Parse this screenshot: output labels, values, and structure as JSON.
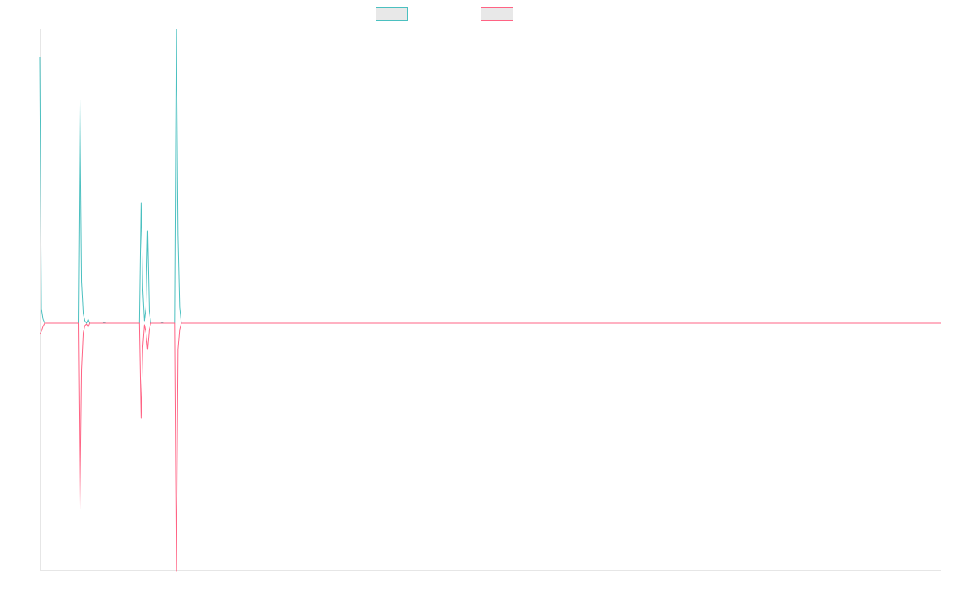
{
  "chart_data": {
    "type": "line",
    "title": "",
    "xlabel": "",
    "ylabel": "",
    "grid": false,
    "legend_position": "top-center",
    "x": [
      0,
      1,
      2,
      3,
      4,
      5,
      6,
      7,
      8,
      9,
      10,
      11,
      12,
      13,
      14,
      15,
      16,
      17,
      18,
      19,
      20,
      21,
      22,
      23,
      24,
      25,
      26,
      27,
      28,
      29,
      30,
      31,
      32,
      33,
      34,
      35,
      36,
      37,
      38,
      39,
      40,
      41,
      42,
      43,
      44,
      45,
      46,
      47,
      48,
      49,
      50,
      51,
      52,
      53,
      54,
      55,
      56,
      57,
      58,
      59,
      60,
      61,
      62,
      63,
      64,
      65,
      66,
      67,
      68,
      69,
      70,
      71,
      72,
      73,
      74,
      75,
      76,
      77,
      78,
      79,
      80,
      81,
      82,
      83,
      84,
      85,
      86,
      87,
      88,
      89,
      90,
      91,
      92,
      93,
      94,
      95,
      96,
      97,
      98,
      99,
      100,
      101,
      102,
      103,
      104,
      105,
      106,
      107,
      108,
      109,
      110,
      111,
      112,
      113,
      114,
      115,
      116,
      117,
      118,
      119,
      120,
      121,
      122,
      123,
      124,
      125,
      126,
      127,
      128,
      129,
      130,
      131,
      132,
      133,
      134,
      135,
      136,
      137,
      138,
      139,
      140,
      141,
      142,
      143,
      144,
      145,
      146,
      147,
      148,
      149,
      150,
      151,
      152,
      153,
      154,
      155,
      156,
      157,
      158,
      159,
      160,
      161,
      162,
      163,
      164,
      165,
      166,
      167,
      168,
      169,
      170,
      171,
      172,
      173,
      174,
      175,
      176,
      177,
      178,
      179,
      180,
      181,
      182,
      183,
      184,
      185,
      186,
      187,
      188,
      189,
      190,
      191,
      192,
      193,
      194,
      195,
      196,
      197,
      198,
      199,
      200,
      201,
      202,
      203,
      204,
      205,
      206,
      207,
      208,
      209,
      210,
      211,
      212,
      213,
      214,
      215,
      216,
      217,
      218,
      219,
      220,
      221,
      222,
      223,
      224,
      225,
      226,
      227,
      228,
      229,
      230,
      231,
      232,
      233,
      234,
      235,
      236,
      237,
      238,
      239,
      240,
      241,
      242,
      243,
      244,
      245,
      246,
      247,
      248,
      249,
      250,
      251,
      252,
      253,
      254,
      255,
      256,
      257,
      258,
      259,
      260,
      261,
      262,
      263,
      264,
      265,
      266,
      267,
      268,
      269,
      270,
      271,
      272,
      273,
      274,
      275,
      276,
      277,
      278,
      279,
      280,
      281,
      282,
      283,
      284,
      285,
      286,
      287,
      288,
      289,
      290,
      291,
      292,
      293,
      294,
      295,
      296,
      297,
      298,
      299,
      300,
      301,
      302,
      303,
      304,
      305,
      306,
      307,
      308,
      309,
      310,
      311,
      312,
      313,
      314,
      315,
      316,
      317,
      318,
      319,
      320,
      321,
      322,
      323,
      324,
      325,
      326,
      327,
      328,
      329,
      330,
      331,
      332,
      333,
      334,
      335,
      336,
      337,
      338,
      339,
      340,
      341,
      342,
      343,
      344,
      345,
      346,
      347,
      348,
      349,
      350,
      351,
      352,
      353,
      354,
      355,
      356,
      357,
      358,
      359,
      360,
      361,
      362,
      363,
      364,
      365,
      366,
      367,
      368,
      369,
      370,
      371,
      372,
      373,
      374,
      375,
      376,
      377,
      378,
      379,
      380,
      381,
      382,
      383,
      384,
      385,
      386,
      387,
      388,
      389,
      390,
      391,
      392,
      393,
      394,
      395,
      396,
      397,
      398,
      399,
      400,
      401,
      402,
      403,
      404,
      405,
      406,
      407,
      408,
      409,
      410,
      411,
      412,
      413,
      414,
      415,
      416,
      417,
      418,
      419,
      420,
      421,
      422,
      423,
      424,
      425,
      426,
      427,
      428,
      429,
      430,
      431,
      432,
      433,
      434,
      435,
      436,
      437,
      438,
      439,
      440,
      441,
      442,
      443,
      444,
      445,
      446,
      447,
      448,
      449,
      450,
      451,
      452,
      453,
      454,
      455,
      456,
      457,
      458,
      459,
      460,
      461,
      462,
      463,
      464,
      465,
      466,
      467,
      468,
      469,
      470,
      471,
      472,
      473,
      474,
      475,
      476,
      477,
      478,
      479,
      480,
      481,
      482,
      483,
      484,
      485,
      486,
      487,
      488,
      489,
      490,
      491,
      492,
      493,
      494,
      495,
      496,
      497,
      498,
      499,
      500,
      501,
      502,
      503,
      504,
      505,
      506,
      507,
      508,
      509,
      510,
      511,
      512,
      513,
      514,
      515,
      516,
      517,
      518,
      519,
      520,
      521,
      522,
      523,
      524,
      525,
      526,
      527,
      528,
      529,
      530,
      531,
      532,
      533,
      534,
      535,
      536,
      537,
      538,
      539,
      540,
      541,
      542,
      543,
      544,
      545,
      546,
      547,
      548,
      549,
      550,
      551,
      552,
      553,
      554,
      555,
      556,
      557,
      558,
      559,
      560
    ],
    "xlim": [
      0,
      560
    ],
    "ylim": [
      -310,
      370
    ],
    "series": [
      {
        "name": "",
        "color": "#4bc0c0",
        "fill": "#e8e8e8",
        "points": [
          [
            0,
            334
          ],
          [
            1,
            18
          ],
          [
            2,
            5
          ],
          [
            3,
            0
          ],
          [
            24,
            0
          ],
          [
            25,
            280
          ],
          [
            26,
            52
          ],
          [
            27,
            12
          ],
          [
            28,
            3
          ],
          [
            29,
            0
          ],
          [
            30,
            5
          ],
          [
            31,
            0
          ],
          [
            39,
            0
          ],
          [
            40,
            1
          ],
          [
            41,
            0
          ],
          [
            62,
            0
          ],
          [
            63,
            151
          ],
          [
            64,
            44
          ],
          [
            65,
            3
          ],
          [
            66,
            20
          ],
          [
            67,
            116
          ],
          [
            68,
            15
          ],
          [
            69,
            0
          ],
          [
            75,
            0
          ],
          [
            76,
            1
          ],
          [
            77,
            0
          ],
          [
            84,
            0
          ],
          [
            85,
            369
          ],
          [
            86,
            111
          ],
          [
            87,
            20
          ],
          [
            88,
            0
          ],
          [
            560,
            0
          ]
        ]
      },
      {
        "name": "",
        "color": "#ff6384",
        "fill": "#e8e8e8",
        "points": [
          [
            0,
            -14
          ],
          [
            1,
            -10
          ],
          [
            2,
            -4
          ],
          [
            3,
            0
          ],
          [
            24,
            0
          ],
          [
            25,
            -233
          ],
          [
            26,
            -58
          ],
          [
            27,
            -12
          ],
          [
            28,
            -3
          ],
          [
            29,
            -1
          ],
          [
            30,
            -5
          ],
          [
            31,
            0
          ],
          [
            62,
            0
          ],
          [
            63,
            -119
          ],
          [
            64,
            -31
          ],
          [
            65,
            -2
          ],
          [
            66,
            -12
          ],
          [
            67,
            -33
          ],
          [
            68,
            -8
          ],
          [
            69,
            0
          ],
          [
            84,
            0
          ],
          [
            85,
            -311
          ],
          [
            86,
            -33
          ],
          [
            87,
            -8
          ],
          [
            88,
            0
          ],
          [
            560,
            0
          ]
        ]
      }
    ]
  }
}
